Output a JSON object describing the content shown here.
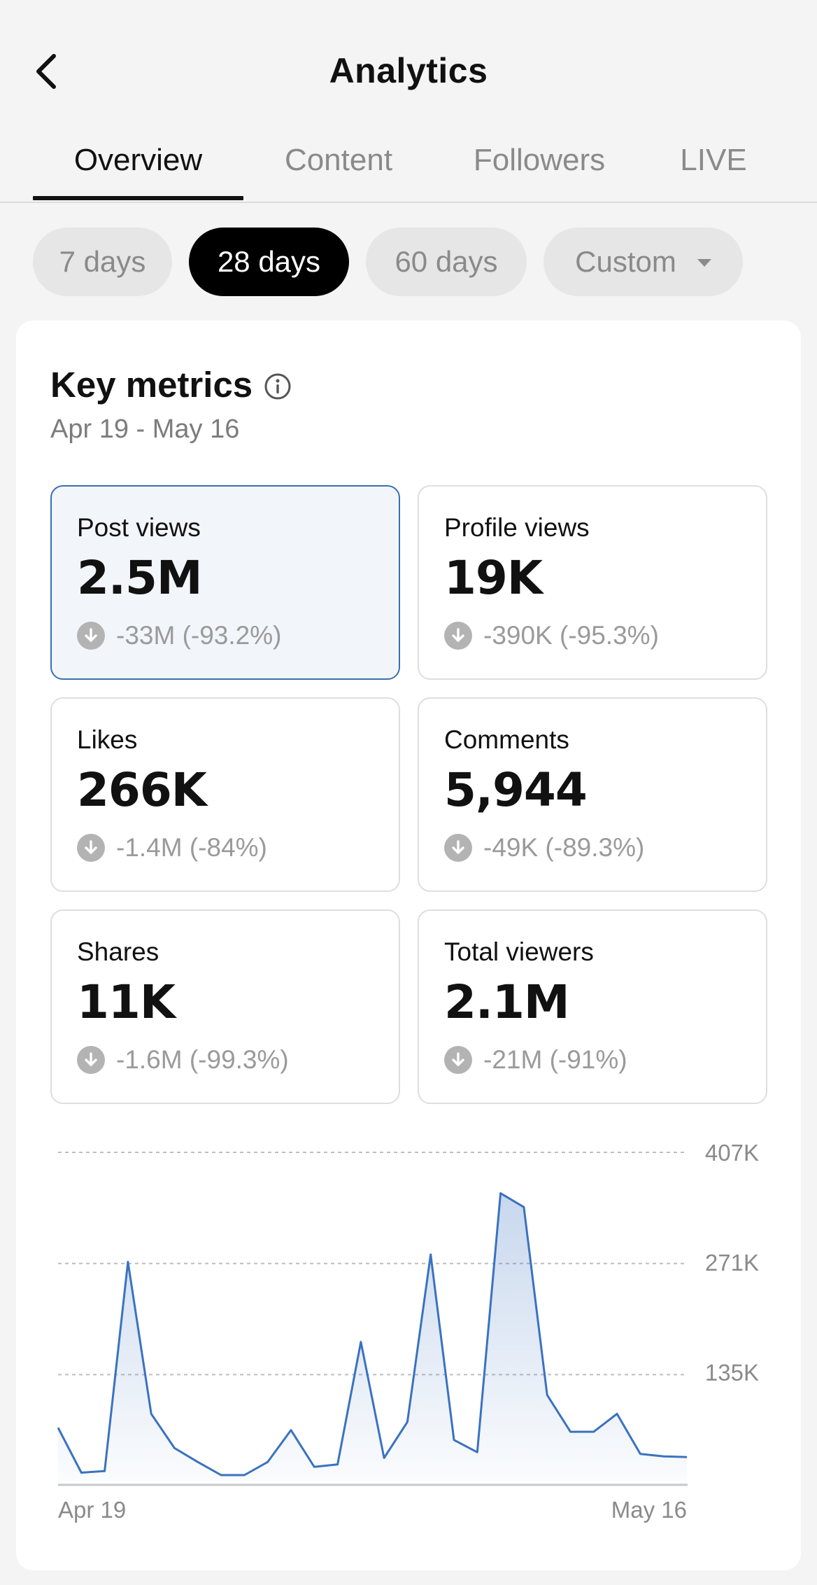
{
  "header": {
    "title": "Analytics",
    "back_icon": "chevron-left-icon"
  },
  "tabs": [
    {
      "label": "Overview",
      "active": true
    },
    {
      "label": "Content",
      "active": false
    },
    {
      "label": "Followers",
      "active": false
    },
    {
      "label": "LIVE",
      "active": false
    }
  ],
  "ranges": [
    {
      "label": "7 days",
      "active": false
    },
    {
      "label": "28 days",
      "active": true
    },
    {
      "label": "60 days",
      "active": false
    },
    {
      "label": "Custom",
      "active": false,
      "has_dropdown": true
    }
  ],
  "key_metrics": {
    "title": "Key metrics",
    "info_icon": "info-icon",
    "date_range": "Apr 19 - May 16",
    "items": [
      {
        "label": "Post views",
        "value": "2.5M",
        "delta": "-33M (-93.2%)",
        "selected": true
      },
      {
        "label": "Profile views",
        "value": "19K",
        "delta": "-390K (-95.3%)",
        "selected": false
      },
      {
        "label": "Likes",
        "value": "266K",
        "delta": "-1.4M (-84%)",
        "selected": false
      },
      {
        "label": "Comments",
        "value": "5,944",
        "delta": "-49K (-89.3%)",
        "selected": false
      },
      {
        "label": "Shares",
        "value": "11K",
        "delta": "-1.6M (-99.3%)",
        "selected": false
      },
      {
        "label": "Total viewers",
        "value": "2.1M",
        "delta": "-21M (-91%)",
        "selected": false
      }
    ]
  },
  "colors": {
    "accent": "#3a72c0",
    "selected_bg": "#f2f6fa",
    "selected_border": "#3a6fb0",
    "active_pill": "#000000"
  },
  "chart_data": {
    "type": "area",
    "x_start": "Apr 19",
    "x_end": "May 16",
    "y_ticks": [
      "407K",
      "271K",
      "135K"
    ],
    "ylim": [
      0,
      407000
    ],
    "grid": true,
    "series": [
      {
        "values": [
          70000,
          15000,
          17000,
          273000,
          87000,
          45000,
          28000,
          12000,
          12000,
          28000,
          67000,
          22000,
          25000,
          175000,
          33000,
          77000,
          282000,
          55000,
          40000,
          357000,
          340000,
          110000,
          65000,
          65000,
          87000,
          38000,
          35000,
          34000
        ]
      }
    ]
  }
}
